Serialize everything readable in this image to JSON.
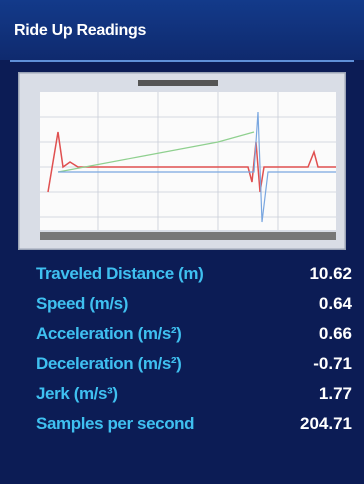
{
  "header": {
    "title": "Ride Up Readings"
  },
  "readings": {
    "rows": [
      {
        "label": "Traveled Distance (m)",
        "value": 10.62
      },
      {
        "label": "Speed (m/s)",
        "value": 0.64
      },
      {
        "label": "Acceleration (m/s²)",
        "value": 0.66
      },
      {
        "label": "Deceleration (m/s²)",
        "value": -0.71
      },
      {
        "label": "Jerk (m/s³)",
        "value": 1.77
      },
      {
        "label": "Samples per second",
        "value": 204.71
      }
    ]
  }
}
